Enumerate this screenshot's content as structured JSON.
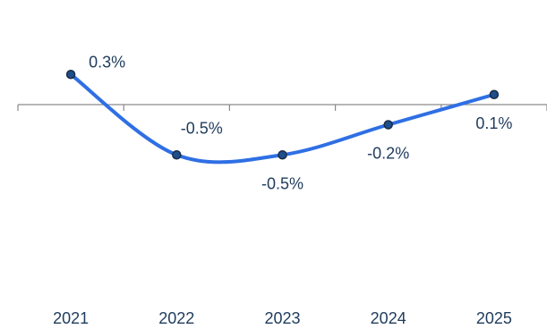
{
  "chart_data": {
    "type": "line",
    "categories": [
      "2021",
      "2022",
      "2023",
      "2024",
      "2025"
    ],
    "series": [
      {
        "values": [
          0.3,
          -0.5,
          -0.5,
          -0.2,
          0.1
        ],
        "data_labels": [
          "0.3%",
          "-0.5%",
          "-0.5%",
          "-0.2%",
          "0.1%"
        ],
        "color": "#2f6fe4",
        "smooth": true
      }
    ],
    "title": "",
    "xlabel": "",
    "ylabel": "",
    "ylim": [
      -0.6,
      0.35
    ],
    "grid": false,
    "legend": "none",
    "colors": {
      "line": "#2f6fe4",
      "marker_fill": "#1f4e8c",
      "marker_stroke": "#1a2c45",
      "axis": "#8a8a8a",
      "text": "#1f3b5c"
    }
  }
}
